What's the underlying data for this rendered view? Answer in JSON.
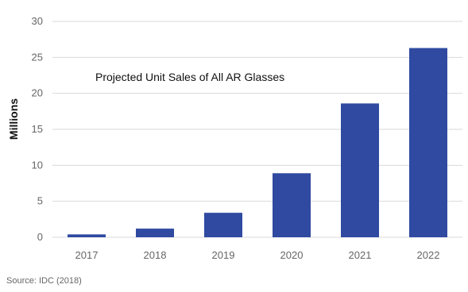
{
  "chart_data": {
    "type": "bar",
    "title": "Projected Unit Sales of All AR Glasses",
    "xlabel": "",
    "ylabel": "Millions",
    "categories": [
      "2017",
      "2018",
      "2019",
      "2020",
      "2021",
      "2022"
    ],
    "values": [
      0.4,
      1.2,
      3.4,
      8.9,
      18.6,
      26.3
    ],
    "ylim": [
      0,
      30
    ],
    "yticks": [
      0,
      5,
      10,
      15,
      20,
      25,
      30
    ],
    "grid": true,
    "legend": "none",
    "bar_color": "#2f4aa0",
    "grid_color": "#d9d9d9"
  },
  "source": "Source: IDC (2018)"
}
